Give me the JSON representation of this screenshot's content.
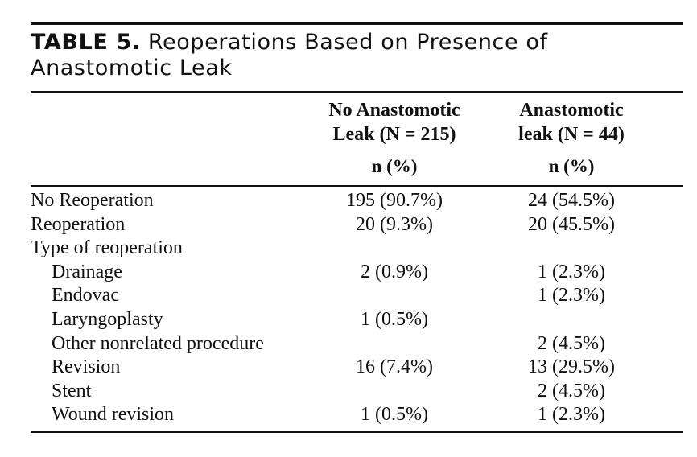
{
  "table": {
    "caption_label": "TABLE 5.",
    "caption_text": "Reoperations Based on Presence of Anastomotic Leak",
    "columns": [
      {
        "header_line1": "No Anastomotic",
        "header_line2": "Leak (N = 215)",
        "unit": "n (%)"
      },
      {
        "header_line1": "Anastomotic",
        "header_line2": "leak (N = 44)",
        "unit": "n (%)"
      }
    ],
    "rows": [
      {
        "label": "No Reoperation",
        "indent": false,
        "no_leak": "195 (90.7%)",
        "leak": "24 (54.5%)"
      },
      {
        "label": "Reoperation",
        "indent": false,
        "no_leak": "20 (9.3%)",
        "leak": "20 (45.5%)"
      },
      {
        "label": "Type of reoperation",
        "indent": false,
        "no_leak": "",
        "leak": ""
      },
      {
        "label": "Drainage",
        "indent": true,
        "no_leak": "2 (0.9%)",
        "leak": "1 (2.3%)"
      },
      {
        "label": "Endovac",
        "indent": true,
        "no_leak": "",
        "leak": "1 (2.3%)"
      },
      {
        "label": "Laryngoplasty",
        "indent": true,
        "no_leak": "1 (0.5%)",
        "leak": ""
      },
      {
        "label": "Other nonrelated procedure",
        "indent": true,
        "no_leak": "",
        "leak": "2 (4.5%)"
      },
      {
        "label": "Revision",
        "indent": true,
        "no_leak": "16 (7.4%)",
        "leak": "13 (29.5%)"
      },
      {
        "label": "Stent",
        "indent": true,
        "no_leak": "",
        "leak": "2 (4.5%)"
      },
      {
        "label": "Wound revision",
        "indent": true,
        "no_leak": "1 (0.5%)",
        "leak": "1 (2.3%)"
      }
    ]
  }
}
